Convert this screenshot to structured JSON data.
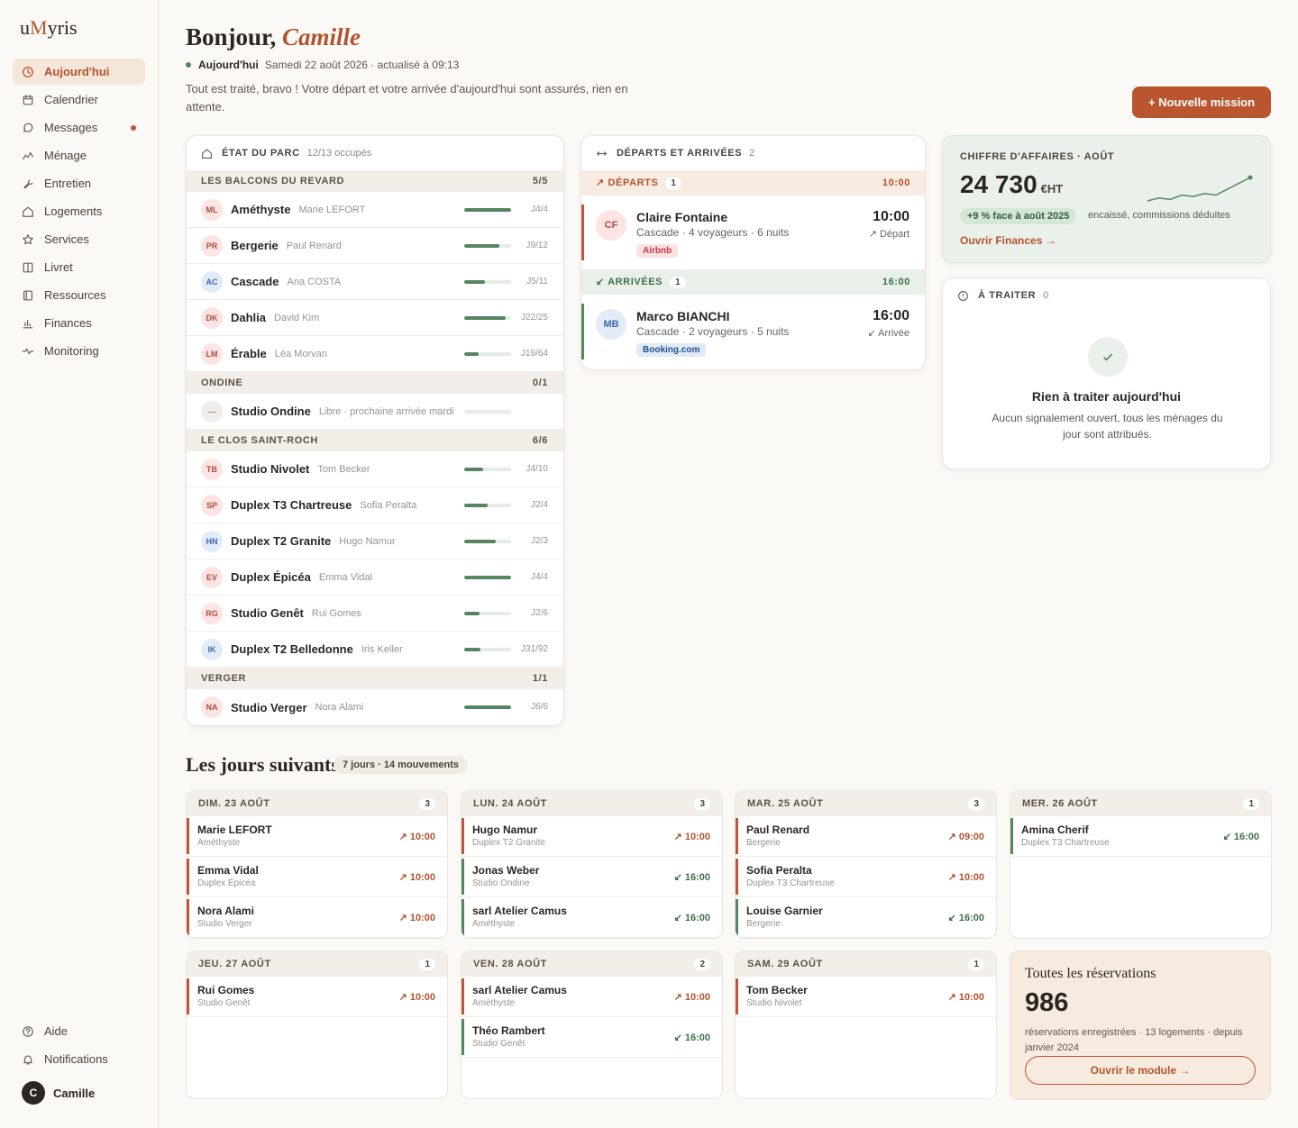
{
  "app": {
    "logo_pre": "u",
    "logo_m": "M",
    "logo_post": "yris"
  },
  "nav": [
    {
      "label": "Aujourd'hui",
      "icon": "clock-icon",
      "active": true
    },
    {
      "label": "Calendrier",
      "icon": "calendar-icon"
    },
    {
      "label": "Messages",
      "icon": "message-icon",
      "unread": true
    },
    {
      "label": "Ménage",
      "icon": "broom-icon"
    },
    {
      "label": "Entretien",
      "icon": "wrench-icon"
    },
    {
      "label": "Logements",
      "icon": "home-icon"
    },
    {
      "label": "Services",
      "icon": "star-icon"
    },
    {
      "label": "Livret",
      "icon": "book-icon"
    },
    {
      "label": "Ressources",
      "icon": "folder-icon"
    },
    {
      "label": "Finances",
      "icon": "bar-chart-icon"
    },
    {
      "label": "Monitoring",
      "icon": "pulse-icon"
    }
  ],
  "nav_bottom": [
    {
      "label": "Aide",
      "icon": "help-icon"
    },
    {
      "label": "Notifications",
      "icon": "bell-icon"
    }
  ],
  "user": {
    "initial": "C",
    "name": "Camille"
  },
  "header": {
    "greeting": "Bonjour,",
    "name": "Camille",
    "today_label": "Aujourd'hui",
    "date_line": "Samedi 22 août 2026 · actualisé à 09:13",
    "intro": "Tout est traité, bravo ! Votre départ et votre arrivée d'aujourd'hui sont assurés, rien en attente.",
    "new_mission": "+ Nouvelle mission"
  },
  "parc": {
    "title": "ÉTAT DU PARC",
    "summary": "12/13 occupés",
    "groups": [
      {
        "name": "LES BALCONS DU REVARD",
        "count": "5/5",
        "items": [
          {
            "initials": "ML",
            "tone": "red",
            "name": "Améthyste",
            "sub": "Marie LEFORT",
            "progress": 1.0,
            "value": "J4/4"
          },
          {
            "initials": "PR",
            "tone": "red",
            "name": "Bergerie",
            "sub": "Paul Renard",
            "progress": 0.75,
            "value": "J9/12"
          },
          {
            "initials": "AC",
            "tone": "blue",
            "name": "Cascade",
            "sub": "Ana COSTA",
            "progress": 0.45,
            "value": "J5/11"
          },
          {
            "initials": "DK",
            "tone": "red",
            "name": "Dahlia",
            "sub": "David Kim",
            "progress": 0.88,
            "value": "J22/25"
          },
          {
            "initials": "LM",
            "tone": "red",
            "name": "Érable",
            "sub": "Léa Morvan",
            "progress": 0.3,
            "value": "J19/64"
          }
        ]
      },
      {
        "name": "ONDINE",
        "count": "0/1",
        "items": [
          {
            "initials": "—",
            "tone": "grey",
            "name": "Studio Ondine",
            "sub": "Libre · prochaine arrivée mardi",
            "progress": 0,
            "value": ""
          }
        ]
      },
      {
        "name": "LE CLOS SAINT-ROCH",
        "count": "6/6",
        "items": [
          {
            "initials": "TB",
            "tone": "red",
            "name": "Studio Nivolet",
            "sub": "Tom Becker",
            "progress": 0.4,
            "value": "J4/10"
          },
          {
            "initials": "SP",
            "tone": "red",
            "name": "Duplex T3 Chartreuse",
            "sub": "Sofia Peralta",
            "progress": 0.5,
            "value": "J2/4"
          },
          {
            "initials": "HN",
            "tone": "blue",
            "name": "Duplex T2 Granite",
            "sub": "Hugo Namur",
            "progress": 0.67,
            "value": "J2/3"
          },
          {
            "initials": "EV",
            "tone": "red",
            "name": "Duplex Épicéa",
            "sub": "Emma Vidal",
            "progress": 1.0,
            "value": "J4/4"
          },
          {
            "initials": "RG",
            "tone": "red",
            "name": "Studio Genêt",
            "sub": "Rui Gomes",
            "progress": 0.33,
            "value": "J2/6"
          },
          {
            "initials": "IK",
            "tone": "blue",
            "name": "Duplex T2 Belledonne",
            "sub": "Iris Keller",
            "progress": 0.34,
            "value": "J31/92"
          }
        ]
      },
      {
        "name": "VERGER",
        "count": "1/1",
        "items": [
          {
            "initials": "NA",
            "tone": "red",
            "name": "Studio Verger",
            "sub": "Nora Alami",
            "progress": 1.0,
            "value": "J6/6"
          }
        ]
      }
    ]
  },
  "moves": {
    "title": "DÉPARTS ET ARRIVÉES",
    "count": "2",
    "departures": {
      "label": "↗ DÉPARTS",
      "count": "1",
      "time": "10:00",
      "item": {
        "initials": "CF",
        "name": "Claire Fontaine",
        "sub": "Cascade · 4 voyageurs · 6 nuits",
        "tag": "Airbnb",
        "time": "10:00",
        "kind": "↗ Départ"
      }
    },
    "arrivals": {
      "label": "↙ ARRIVÉES",
      "count": "1",
      "time": "16:00",
      "item": {
        "initials": "MB",
        "name": "Marco BIANCHI",
        "sub": "Cascade · 2 voyageurs · 5 nuits",
        "tag": "Booking.com",
        "time": "16:00",
        "kind": "↙ Arrivée"
      }
    }
  },
  "revenue": {
    "title": "CHIFFRE D'AFFAIRES · AOÛT",
    "value": "24 730",
    "unit": "€HT",
    "delta": "+9 % face à août 2025",
    "note": "encaissé, commissions déduites",
    "link": "Ouvrir Finances →",
    "sparkline": [
      2,
      3,
      2.5,
      4,
      3.5,
      4.5,
      4,
      6,
      8,
      10
    ]
  },
  "todo": {
    "title": "À TRAITER",
    "count": "0",
    "empty_title": "Rien à traiter aujourd'hui",
    "empty_text": "Aucun signalement ouvert, tous les ménages du jour sont attribués."
  },
  "next": {
    "title": "Les jours suivants",
    "summary": "7 jours · 14 mouvements",
    "days": [
      {
        "label": "DIM. 23 AOÛT",
        "count": "3",
        "items": [
          {
            "name": "Marie LEFORT",
            "place": "Améthyste",
            "type": "dep",
            "time": "↗ 10:00"
          },
          {
            "name": "Emma Vidal",
            "place": "Duplex Épicéa",
            "type": "dep",
            "time": "↗ 10:00"
          },
          {
            "name": "Nora Alami",
            "place": "Studio Verger",
            "type": "dep",
            "time": "↗ 10:00"
          }
        ]
      },
      {
        "label": "LUN. 24 AOÛT",
        "count": "3",
        "items": [
          {
            "name": "Hugo Namur",
            "place": "Duplex T2 Granite",
            "type": "dep",
            "time": "↗ 10:00"
          },
          {
            "name": "Jonas Weber",
            "place": "Studio Ondine",
            "type": "arr",
            "time": "↙ 16:00"
          },
          {
            "name": "sarl Atelier Camus",
            "place": "Améthyste",
            "type": "arr",
            "time": "↙ 16:00"
          }
        ]
      },
      {
        "label": "MAR. 25 AOÛT",
        "count": "3",
        "items": [
          {
            "name": "Paul Renard",
            "place": "Bergerie",
            "type": "dep",
            "time": "↗ 09:00"
          },
          {
            "name": "Sofia Peralta",
            "place": "Duplex T3 Chartreuse",
            "type": "dep",
            "time": "↗ 10:00"
          },
          {
            "name": "Louise Garnier",
            "place": "Bergerie",
            "type": "arr",
            "time": "↙ 16:00"
          }
        ]
      },
      {
        "label": "MER. 26 AOÛT",
        "count": "1",
        "items": [
          {
            "name": "Amina Cherif",
            "place": "Duplex T3 Chartreuse",
            "type": "arr",
            "time": "↙ 16:00"
          }
        ]
      },
      {
        "label": "JEU. 27 AOÛT",
        "count": "1",
        "items": [
          {
            "name": "Rui Gomes",
            "place": "Studio Genêt",
            "type": "dep",
            "time": "↗ 10:00"
          }
        ]
      },
      {
        "label": "VEN. 28 AOÛT",
        "count": "2",
        "items": [
          {
            "name": "sarl Atelier Camus",
            "place": "Améthyste",
            "type": "dep",
            "time": "↗ 10:00"
          },
          {
            "name": "Théo Rambert",
            "place": "Studio Genêt",
            "type": "arr",
            "time": "↙ 16:00"
          }
        ]
      },
      {
        "label": "SAM. 29 AOÛT",
        "count": "1",
        "items": [
          {
            "name": "Tom Becker",
            "place": "Studio Nivolet",
            "type": "dep",
            "time": "↗ 10:00"
          }
        ]
      }
    ]
  },
  "reservations": {
    "title": "Toutes les réservations",
    "count": "986",
    "text": "réservations enregistrées · 13 logements · depuis janvier 2024",
    "button": "Ouvrir le module →"
  },
  "colors": {
    "accent": "#b4532e",
    "departure": "#c0553a",
    "arrival": "#56865f",
    "airbnb_bg": "#fbe1e1",
    "airbnb_fg": "#c0394a",
    "booking_bg": "#e1ebf8",
    "booking_fg": "#1f4e8f"
  }
}
